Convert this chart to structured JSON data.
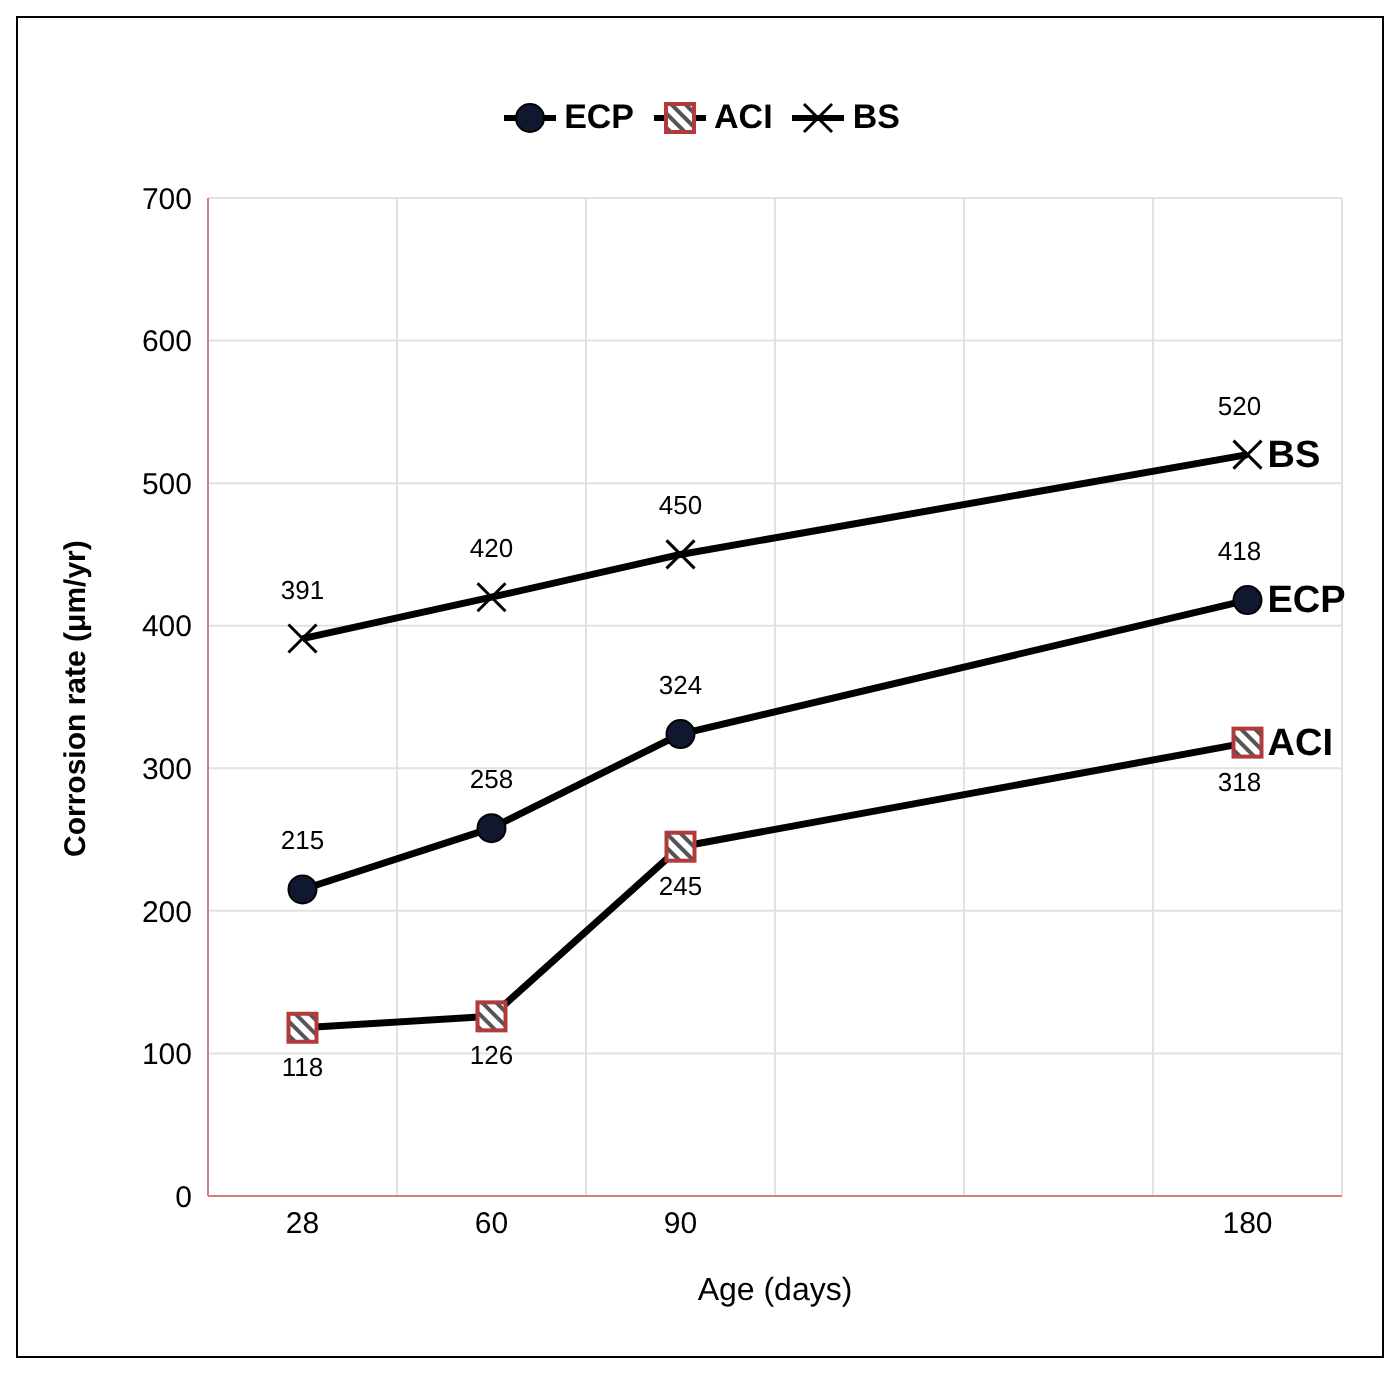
{
  "chart_data": {
    "type": "line",
    "xlabel": "Age (days)",
    "ylabel": "Corrosion rate  (μm/yr)",
    "categories": [
      "28",
      "60",
      "90",
      null,
      null,
      "180"
    ],
    "series": [
      {
        "name": "ECP",
        "color": "#000000",
        "marker": "circle",
        "values": [
          215,
          258,
          324,
          null,
          null,
          418
        ]
      },
      {
        "name": "ACI",
        "color": "#000000",
        "marker": "square",
        "values": [
          118,
          126,
          245,
          null,
          null,
          318
        ]
      },
      {
        "name": "BS",
        "color": "#000000",
        "marker": "cross",
        "values": [
          391,
          420,
          450,
          null,
          null,
          520
        ]
      }
    ],
    "ylim": [
      0,
      700
    ],
    "yticks": [
      0,
      100,
      200,
      300,
      400,
      500,
      600,
      700
    ],
    "grid": true,
    "legend": "top",
    "data_labels": true
  }
}
